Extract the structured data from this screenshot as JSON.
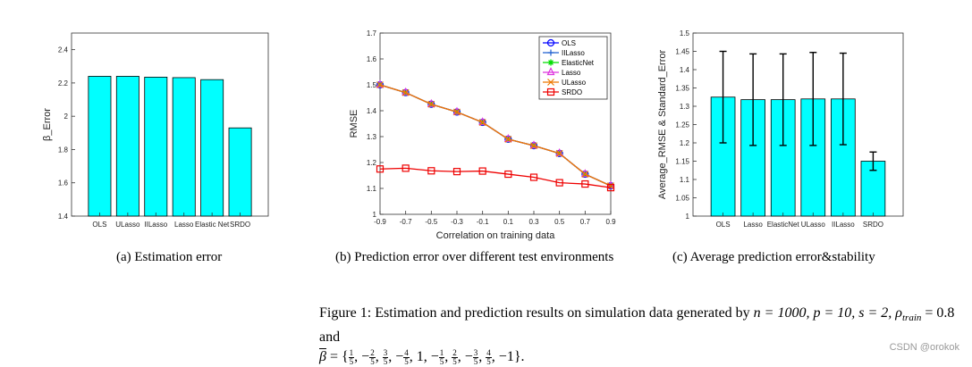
{
  "chart_data": [
    {
      "type": "bar",
      "ylabel": "β_Error",
      "categories": [
        "OLS",
        "ULasso",
        "IILasso",
        "Lasso",
        "Elastic Net",
        "SRDO"
      ],
      "values": [
        2.24,
        2.24,
        2.235,
        2.232,
        2.22,
        1.93
      ],
      "ylim": [
        1.4,
        2.5
      ],
      "yticks": [
        "1.4",
        "1.6",
        "1.8",
        "2",
        "2.2",
        "2.4"
      ],
      "color": "#00ffff",
      "caption": "(a) Estimation error"
    },
    {
      "type": "line",
      "ylabel": "RMSE",
      "xlabel": "Correlation on training data",
      "x": [
        -0.9,
        -0.7,
        -0.5,
        -0.3,
        -0.1,
        0.1,
        0.3,
        0.5,
        0.7,
        0.9
      ],
      "xticks": [
        "-0.9",
        "-0.7",
        "-0.5",
        "-0.3",
        "-0.1",
        "0.1",
        "0.3",
        "0.5",
        "0.7",
        "0.9"
      ],
      "ylim": [
        1,
        1.7
      ],
      "yticks": [
        "1",
        "1.1",
        "1.2",
        "1.3",
        "1.4",
        "1.5",
        "1.6",
        "1.7"
      ],
      "series": [
        {
          "name": "OLS",
          "color": "#0000ff",
          "marker": "circle",
          "values": [
            1.5,
            1.47,
            1.425,
            1.395,
            1.355,
            1.29,
            1.265,
            1.235,
            1.155,
            1.11
          ]
        },
        {
          "name": "IILasso",
          "color": "#1f5fd0",
          "marker": "plus",
          "values": [
            1.5,
            1.47,
            1.425,
            1.395,
            1.355,
            1.29,
            1.265,
            1.235,
            1.155,
            1.11
          ]
        },
        {
          "name": "ElasticNet",
          "color": "#00dd00",
          "marker": "star",
          "values": [
            1.5,
            1.47,
            1.425,
            1.395,
            1.355,
            1.29,
            1.265,
            1.235,
            1.155,
            1.11
          ]
        },
        {
          "name": "Lasso",
          "color": "#dd33dd",
          "marker": "triangle",
          "values": [
            1.5,
            1.47,
            1.425,
            1.395,
            1.355,
            1.29,
            1.265,
            1.235,
            1.155,
            1.11
          ]
        },
        {
          "name": "ULasso",
          "color": "#ee7700",
          "marker": "x",
          "values": [
            1.5,
            1.47,
            1.425,
            1.395,
            1.355,
            1.29,
            1.265,
            1.235,
            1.155,
            1.11
          ]
        },
        {
          "name": "SRDO",
          "color": "#ee0000",
          "marker": "square",
          "values": [
            1.175,
            1.178,
            1.168,
            1.165,
            1.167,
            1.155,
            1.143,
            1.122,
            1.117,
            1.103
          ]
        }
      ],
      "caption": "(b) Prediction error over different test environments"
    },
    {
      "type": "bar",
      "ylabel": "Average_RMSE & Standard_Error",
      "categories": [
        "OLS",
        "Lasso",
        "ElasticNet",
        "ULasso",
        "IILasso",
        "SRDO"
      ],
      "values": [
        1.325,
        1.318,
        1.318,
        1.32,
        1.32,
        1.15
      ],
      "errors": [
        0.125,
        0.125,
        0.125,
        0.127,
        0.125,
        0.025
      ],
      "ylim": [
        1,
        1.5
      ],
      "yticks": [
        "1",
        "1.05",
        "1.1",
        "1.15",
        "1.2",
        "1.25",
        "1.3",
        "1.35",
        "1.4",
        "1.45",
        "1.5"
      ],
      "color": "#00ffff",
      "caption": "(c) Average prediction error&stability"
    }
  ],
  "figure_caption": {
    "label": "Figure 1:",
    "text": "Estimation and prediction results on simulation data generated by",
    "params": [
      "n = 1000,",
      "p = 10,",
      "s = 2,",
      "ρ",
      "train",
      "= 0.8 and"
    ],
    "beta_symbol": "β",
    "beta_values": [
      {
        "sign": "",
        "num": "1",
        "den": "5"
      },
      {
        "sign": "−",
        "num": "2",
        "den": "5"
      },
      {
        "sign": "",
        "num": "3",
        "den": "5"
      },
      {
        "sign": "−",
        "num": "4",
        "den": "5"
      },
      {
        "sign": "",
        "num": "1",
        "den": ""
      },
      {
        "sign": "−",
        "num": "1",
        "den": "5"
      },
      {
        "sign": "",
        "num": "2",
        "den": "5"
      },
      {
        "sign": "−",
        "num": "3",
        "den": "5"
      },
      {
        "sign": "",
        "num": "4",
        "den": "5"
      },
      {
        "sign": "−",
        "num": "1",
        "den": ""
      }
    ]
  },
  "watermark": "CSDN @orokok"
}
